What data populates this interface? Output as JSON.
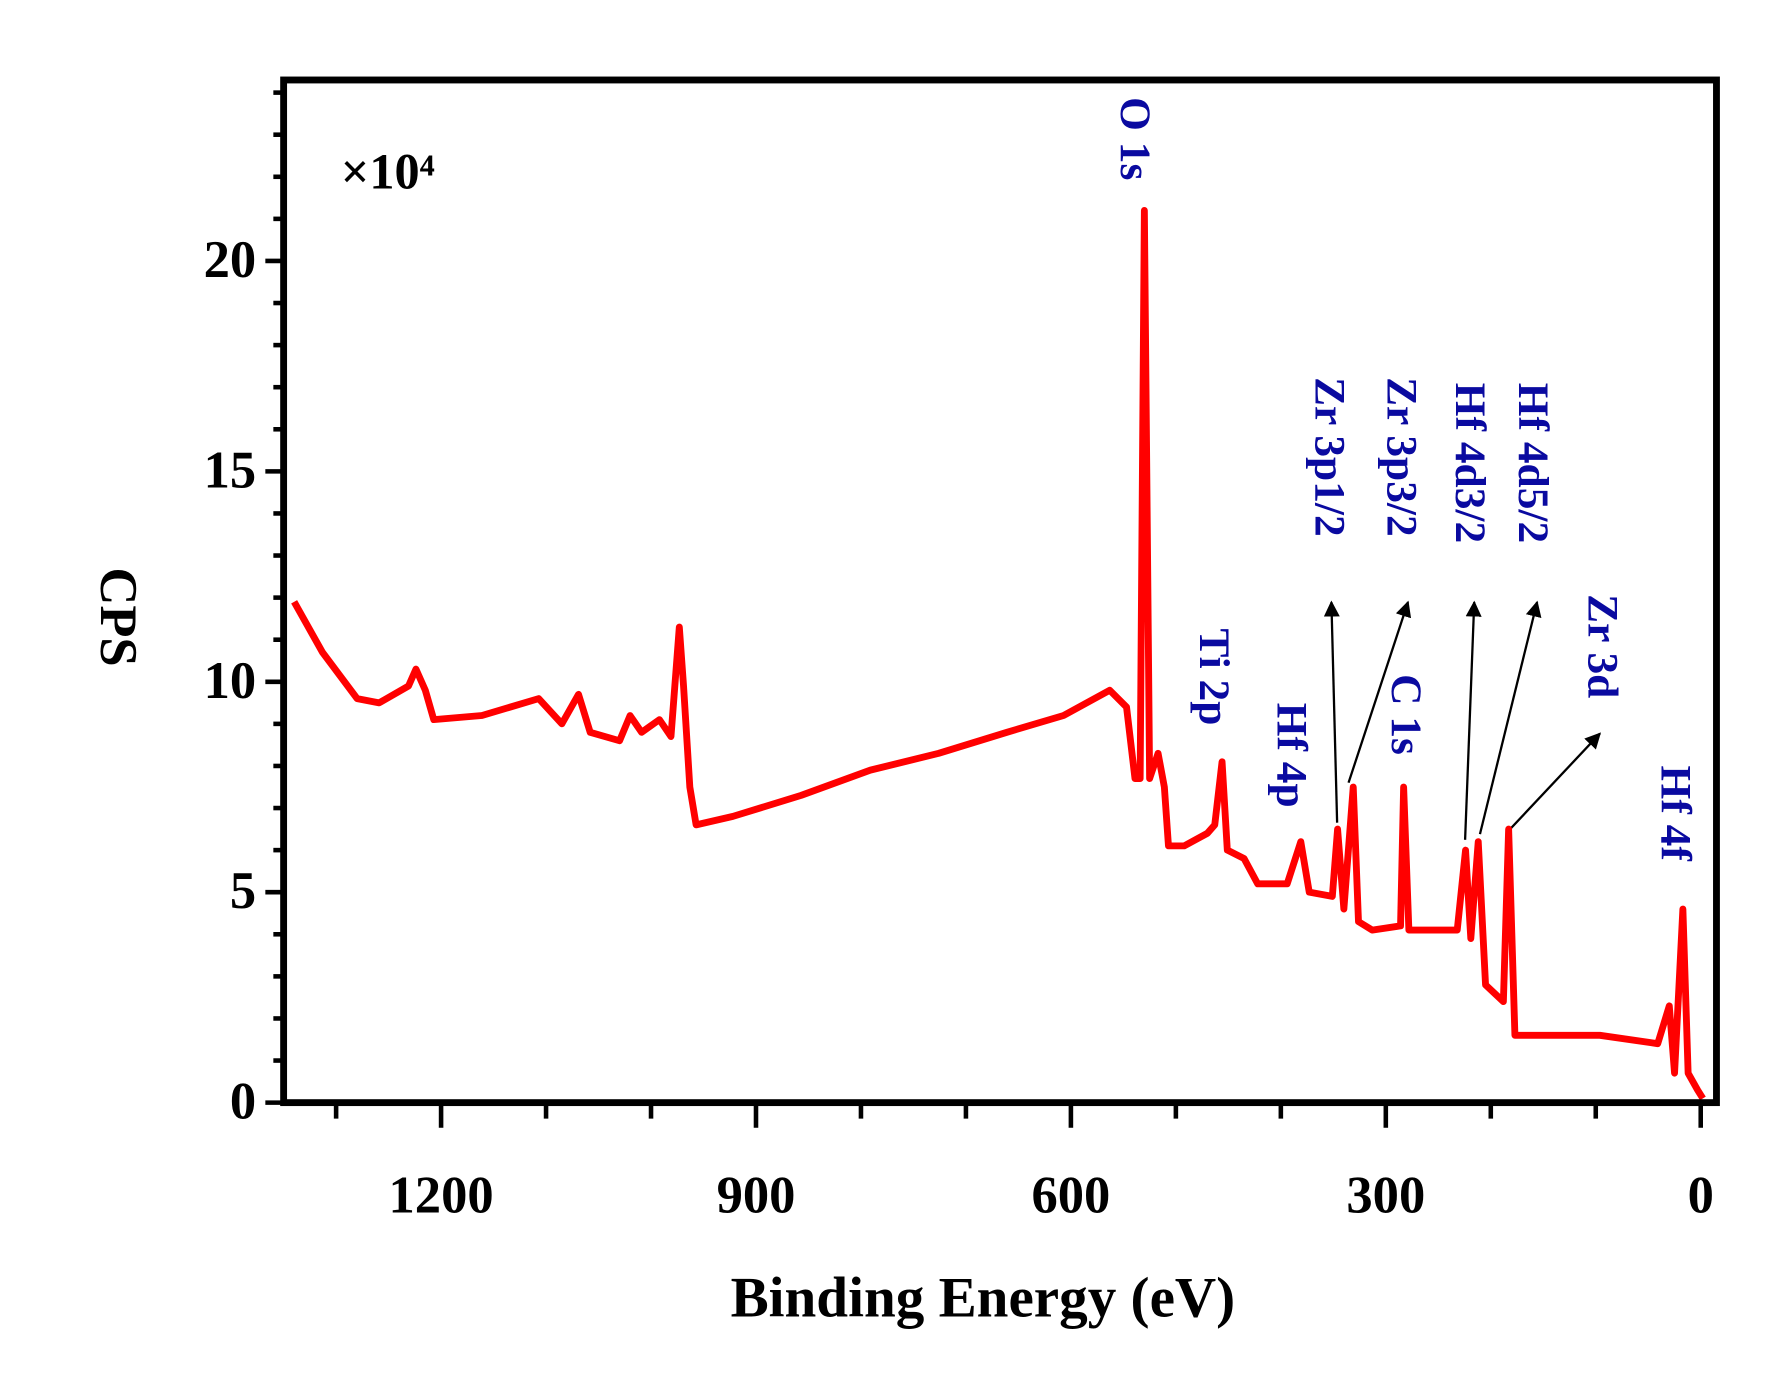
{
  "chart_data": {
    "type": "line",
    "multiplier": "×10⁴",
    "xlabel": "Binding Energy (eV)",
    "ylabel": "CPS",
    "color": "#ff0000",
    "annotation_color": "#0a0aa0",
    "xlim": [
      1350,
      -15
    ],
    "ylim": [
      0,
      24.3
    ],
    "xticks": [
      1200,
      900,
      600,
      300,
      0
    ],
    "yticks": [
      0,
      5,
      10,
      15,
      20
    ],
    "xminor_ticks": [
      1300,
      1100,
      1000,
      800,
      700,
      500,
      400,
      200,
      100
    ],
    "yminor_ticks": [
      1,
      2,
      3,
      4,
      6,
      7,
      8,
      9,
      11,
      12,
      13,
      14,
      16,
      17,
      18,
      19,
      21,
      22,
      23,
      24
    ],
    "annotations": [
      "O 1s",
      "Ti 2p",
      "Hf 4p",
      "Zr 3p1/2",
      "Zr 3p3/2",
      "C 1s",
      "Hf 4d3/2",
      "Hf 4d5/2",
      "Zr 3d",
      "Hf 4f"
    ],
    "x": [
      1340,
      1313,
      1280,
      1259,
      1231,
      1224,
      1215,
      1207,
      1161,
      1107,
      1085,
      1069,
      1058,
      1030,
      1020,
      1009,
      992,
      981,
      973,
      969,
      963,
      957,
      922,
      857,
      791,
      726,
      661,
      607,
      563,
      547,
      539,
      534,
      530,
      525,
      517,
      511,
      507,
      492,
      470,
      463,
      456,
      451,
      435,
      422,
      394,
      381,
      373,
      351,
      346,
      340,
      331,
      326,
      313,
      286,
      283,
      278,
      232,
      224,
      219,
      212,
      205,
      188,
      183,
      177,
      96,
      41,
      30,
      25,
      17,
      12,
      3,
      -2
    ],
    "values": [
      11.9,
      10.7,
      9.6,
      9.5,
      9.9,
      10.3,
      9.8,
      9.1,
      9.2,
      9.6,
      9.0,
      9.7,
      8.8,
      8.6,
      9.2,
      8.8,
      9.1,
      8.7,
      11.3,
      9.9,
      7.5,
      6.6,
      6.8,
      7.3,
      7.9,
      8.3,
      8.8,
      9.2,
      9.8,
      9.4,
      7.7,
      7.7,
      21.2,
      7.7,
      8.3,
      7.5,
      6.1,
      6.1,
      6.4,
      6.6,
      8.1,
      6.0,
      5.8,
      5.2,
      5.2,
      6.2,
      5.0,
      4.9,
      6.5,
      4.6,
      7.5,
      4.3,
      4.1,
      4.2,
      7.5,
      4.1,
      4.1,
      6.0,
      3.9,
      6.2,
      2.8,
      2.4,
      6.5,
      1.6,
      1.6,
      1.4,
      2.3,
      0.7,
      4.6,
      0.7,
      0.3,
      0.1
    ]
  }
}
